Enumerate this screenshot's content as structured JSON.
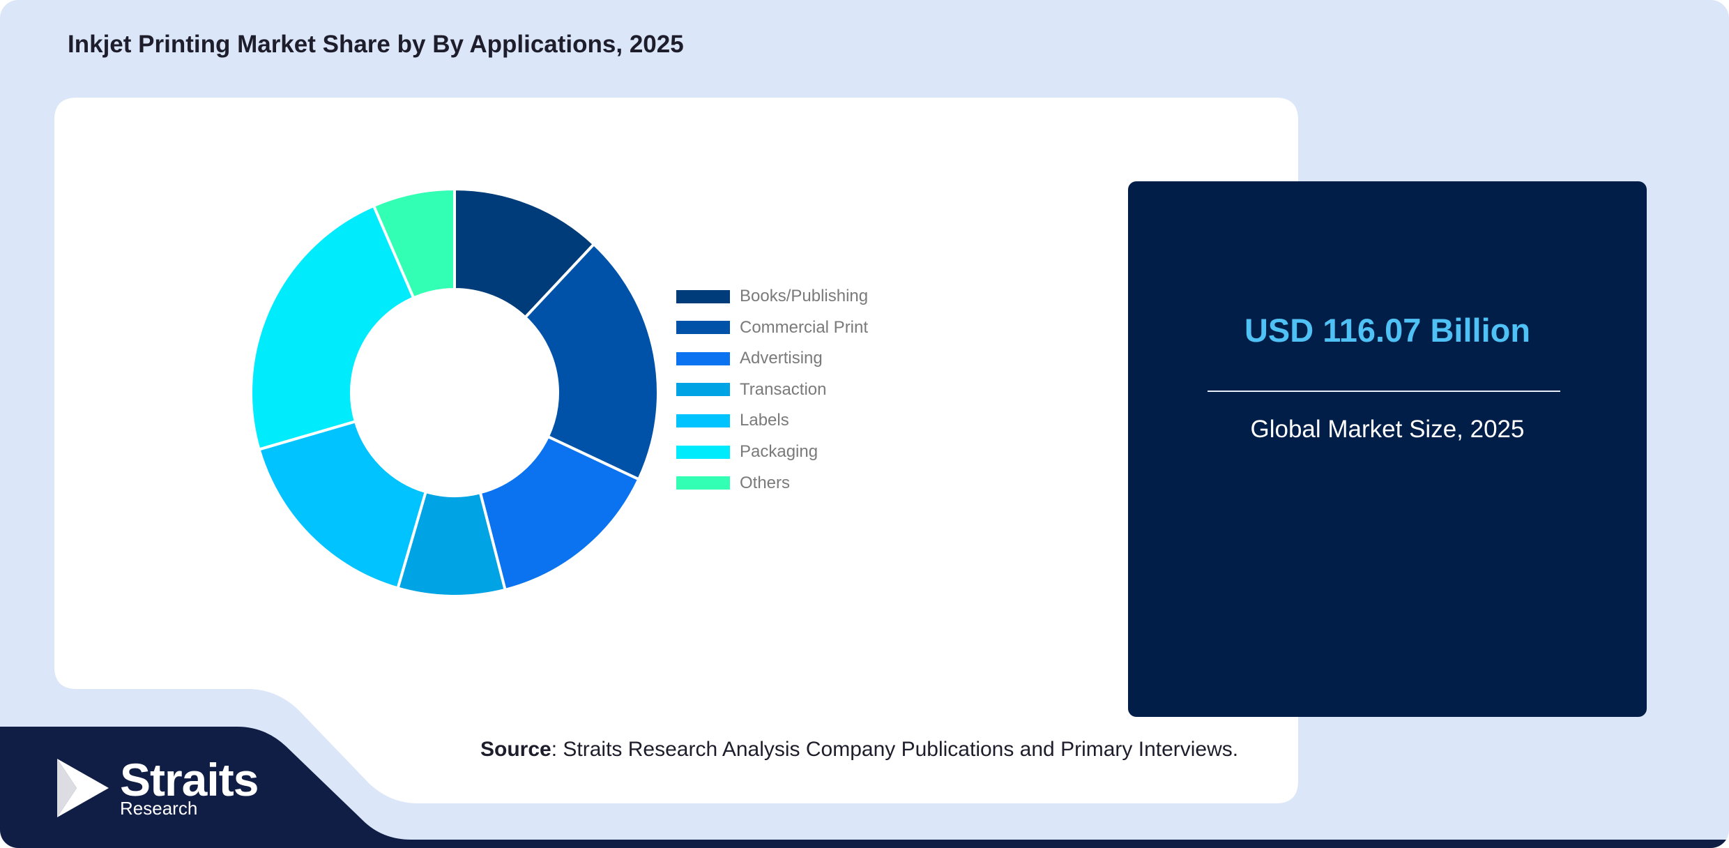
{
  "title": "Inkjet Printing Market Share by By Applications, 2025",
  "colors": {
    "page_bg": "#dbe7f9",
    "card_bg": "#ffffff",
    "stat_bg": "#001e47",
    "stat_value": "#4fc1f4",
    "footer_bg": "#101d45"
  },
  "chart_data": {
    "type": "pie",
    "variant": "donut",
    "categories": [
      "Books/Publishing",
      "Commercial Print",
      "Advertising",
      "Transaction",
      "Labels",
      "Packaging",
      "Others"
    ],
    "values": [
      12,
      20,
      14,
      8.5,
      16,
      23,
      6.5
    ],
    "colors": [
      "#003b7a",
      "#0052a8",
      "#0b72f0",
      "#00a3e4",
      "#00c3ff",
      "#00ecfc",
      "#32ffb4"
    ],
    "legend_position": "right",
    "title": "Inkjet Printing Market Share by By Applications, 2025"
  },
  "stat": {
    "value": "USD 116.07 Billion",
    "caption": "Global Market Size, 2025"
  },
  "source": {
    "label": "Source",
    "text": ": Straits Research Analysis Company Publications and Primary Interviews."
  },
  "logo": {
    "name": "Straits",
    "sub": "Research",
    "icon": "straits-arrow-icon"
  }
}
